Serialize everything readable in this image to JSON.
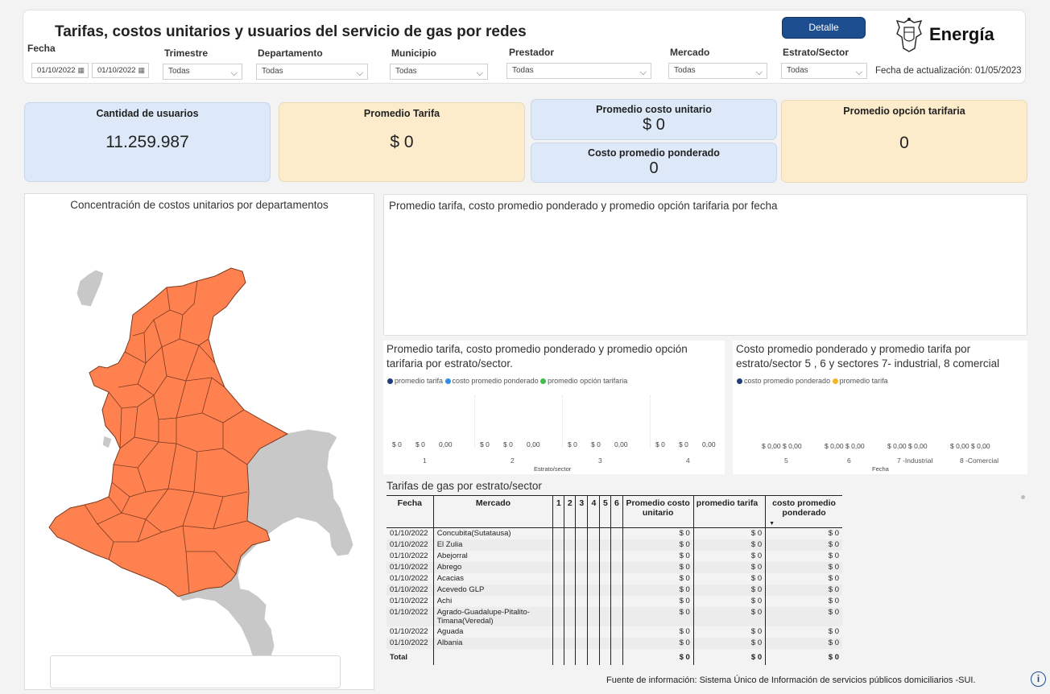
{
  "header": {
    "title": "Tarifas, costos unitarios y usuarios del servicio de gas por redes",
    "detail_button": "Detalle",
    "logo_text": "Energía",
    "update_label": "Fecha de actualización: 01/05/2023"
  },
  "filters": {
    "fecha_label": "Fecha",
    "fecha_from": "01/10/2022",
    "fecha_to": "01/10/2022",
    "trimestre_label": "Trimestre",
    "trimestre_value": "Todas",
    "departamento_label": "Departamento",
    "departamento_value": "Todas",
    "municipio_label": "Municipio",
    "municipio_value": "Todas",
    "prestador_label": "Prestador",
    "prestador_value": "Todas",
    "mercado_label": "Mercado",
    "mercado_value": "Todas",
    "estrato_label": "Estrato/Sector",
    "estrato_value": "Todas"
  },
  "kpis": {
    "usuarios_label": "Cantidad de usuarios",
    "usuarios_value": "11.259.987",
    "tarifa_label": "Promedio Tarifa",
    "tarifa_value": "$ 0",
    "costo_unitario_label": "Promedio costo unitario",
    "costo_unitario_value": "$ 0",
    "costo_ponderado_label": "Costo promedio ponderado",
    "costo_ponderado_value": "0",
    "opcion_label": "Promedio opción tarifaria",
    "opcion_value": "0"
  },
  "map": {
    "title": "Concentración de costos unitarios por departamentos",
    "colors": {
      "selected": "#ff8150",
      "other": "#c8c8c8"
    }
  },
  "line_chart": {
    "title": "Promedio tarifa, costo promedio ponderado y promedio opción tarifaria por fecha"
  },
  "chart_data": [
    {
      "type": "bar",
      "title": "Promedio tarifa, costo promedio ponderado y promedio opción tarifaria por estrato/sector.",
      "xlabel": "Estrato/sector",
      "categories": [
        "1",
        "2",
        "3",
        "4"
      ],
      "series": [
        {
          "name": "promedio tarifa",
          "color": "#1f3d7a",
          "values": [
            0,
            0,
            0,
            0
          ],
          "labels": [
            "$ 0",
            "$ 0",
            "$ 0",
            "$ 0"
          ]
        },
        {
          "name": "costo promedio ponderado",
          "color": "#2f8fe6",
          "values": [
            0,
            0,
            0,
            0
          ],
          "labels": [
            "$ 0",
            "$ 0",
            "$ 0",
            "$ 0"
          ]
        },
        {
          "name": "promedio opción tarifaria",
          "color": "#3fbf4a",
          "values": [
            0,
            0,
            0,
            0
          ],
          "labels": [
            "0,00",
            "0,00",
            "0,00",
            "0,00"
          ]
        }
      ]
    },
    {
      "type": "bar",
      "title": "Costo promedio ponderado y promedio tarifa por estrato/sector 5 , 6 y sectores 7- industrial, 8 comercial",
      "xlabel": "Fecha",
      "categories": [
        "5",
        "6",
        "7 -Industrial",
        "8 -Comercial"
      ],
      "series": [
        {
          "name": "costo promedio ponderado",
          "color": "#1f3d7a",
          "values": [
            0,
            0,
            0,
            0
          ],
          "labels": [
            "$ 0,00",
            "$ 0,00",
            "$ 0,00",
            "$ 0,00"
          ]
        },
        {
          "name": "promedio tarifa",
          "color": "#f5b324",
          "values": [
            0,
            0,
            0,
            0
          ],
          "labels": [
            "$ 0,00",
            "$ 0,00",
            "$ 0,00",
            "$ 0,00"
          ]
        }
      ]
    }
  ],
  "table": {
    "title": "Tarifas de gas por estrato/sector",
    "headers": {
      "fecha": "Fecha",
      "mercado": "Mercado",
      "e1": "1",
      "e2": "2",
      "e3": "3",
      "e4": "4",
      "e5": "5",
      "e6": "6",
      "costo_unitario": "Promedio costo unitario",
      "tarifa": "promedio tarifa",
      "ponderado": "costo promedio ponderado"
    },
    "rows": [
      {
        "fecha": "01/10/2022",
        "mercado": "Concubita(Sutatausa)",
        "cu": "$ 0",
        "tar": "$ 0",
        "pon": "$ 0"
      },
      {
        "fecha": "01/10/2022",
        "mercado": "El Zulia",
        "cu": "$ 0",
        "tar": "$ 0",
        "pon": "$ 0"
      },
      {
        "fecha": "01/10/2022",
        "mercado": "Abejorral",
        "cu": "$ 0",
        "tar": "$ 0",
        "pon": "$ 0"
      },
      {
        "fecha": "01/10/2022",
        "mercado": "Abrego",
        "cu": "$ 0",
        "tar": "$ 0",
        "pon": "$ 0"
      },
      {
        "fecha": "01/10/2022",
        "mercado": "Acacias",
        "cu": "$ 0",
        "tar": "$ 0",
        "pon": "$ 0"
      },
      {
        "fecha": "01/10/2022",
        "mercado": "Acevedo GLP",
        "cu": "$ 0",
        "tar": "$ 0",
        "pon": "$ 0"
      },
      {
        "fecha": "01/10/2022",
        "mercado": "Achi",
        "cu": "$ 0",
        "tar": "$ 0",
        "pon": "$ 0"
      },
      {
        "fecha": "01/10/2022",
        "mercado": "Agrado-Guadalupe-Pitalito-\nTimana(Veredal)",
        "cu": "$ 0",
        "tar": "$ 0",
        "pon": "$ 0"
      },
      {
        "fecha": "01/10/2022",
        "mercado": "Aguada",
        "cu": "$ 0",
        "tar": "$ 0",
        "pon": "$ 0"
      },
      {
        "fecha": "01/10/2022",
        "mercado": "Albania",
        "cu": "$ 0",
        "tar": "$ 0",
        "pon": "$ 0"
      }
    ],
    "total": {
      "label": "Total",
      "cu": "$ 0",
      "tar": "$ 0",
      "pon": "$ 0"
    }
  },
  "footer": {
    "source": "Fuente de información: Sistema Único de Información de servicios públicos domiciliarios -SUI.",
    "info_icon": "info-icon"
  }
}
